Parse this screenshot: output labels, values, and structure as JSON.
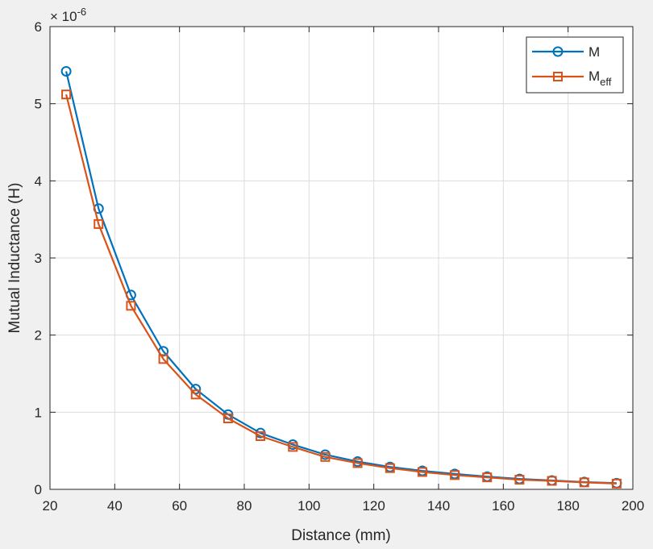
{
  "chart_data": {
    "type": "line",
    "xlabel": "Distance (mm)",
    "ylabel": "Mutual Inductance (H)",
    "y_exponent_label": "× 10",
    "y_exponent_power": "-6",
    "xlim": [
      20,
      200
    ],
    "ylim": [
      0,
      6
    ],
    "xticks": [
      "20",
      "40",
      "60",
      "80",
      "100",
      "120",
      "140",
      "160",
      "180",
      "200"
    ],
    "yticks": [
      "0",
      "1",
      "2",
      "3",
      "4",
      "5",
      "6"
    ],
    "grid": true,
    "legend_position": "top-right",
    "x": [
      25,
      35,
      45,
      55,
      65,
      75,
      85,
      95,
      105,
      115,
      125,
      135,
      145,
      155,
      165,
      175,
      185,
      195
    ],
    "series": [
      {
        "name": "M",
        "color": "#0072bd",
        "marker": "circle",
        "values": [
          5.42,
          3.64,
          2.52,
          1.79,
          1.3,
          0.97,
          0.73,
          0.58,
          0.45,
          0.36,
          0.29,
          0.24,
          0.2,
          0.165,
          0.135,
          0.115,
          0.095,
          0.08
        ]
      },
      {
        "name": "M",
        "name_sub": "eff",
        "color": "#d95319",
        "marker": "square",
        "values": [
          5.12,
          3.44,
          2.38,
          1.69,
          1.23,
          0.92,
          0.69,
          0.55,
          0.42,
          0.34,
          0.275,
          0.225,
          0.185,
          0.155,
          0.125,
          0.11,
          0.09,
          0.075
        ]
      }
    ]
  }
}
